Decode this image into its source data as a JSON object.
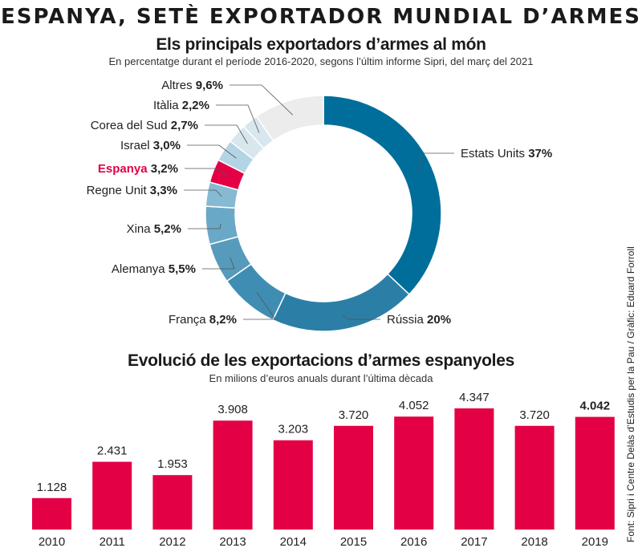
{
  "header": {
    "title": "ESPANYA, SETÈ EXPORTADOR MUNDIAL D’ARMES"
  },
  "source": "Font: Sipri i Centre Delàs d’Estudis per la Pau / Gràfic: Eduard Forroll",
  "colors": {
    "accent": "#e30045",
    "blues": [
      "#006e9b",
      "#2b7fa7",
      "#3f8db3",
      "#569bbc",
      "#6aa8c7",
      "#86b9d2",
      "#9ec8dd",
      "#b3d4e4",
      "#d8e6ee"
    ],
    "other": "#ececec"
  },
  "chart_data": [
    {
      "type": "pie",
      "donut": true,
      "title": "Els principals exportadors d’armes al món",
      "subtitle": "En percentatge durant el període 2016-2020, segons l’últim informe Sipri, del març del 2021",
      "unit": "%",
      "slices": [
        {
          "name": "Estats Units",
          "value": 37,
          "label": "37%"
        },
        {
          "name": "Rússia",
          "value": 20,
          "label": "20%"
        },
        {
          "name": "França",
          "value": 8.2,
          "label": "8,2%"
        },
        {
          "name": "Alemanya",
          "value": 5.5,
          "label": "5,5%"
        },
        {
          "name": "Xina",
          "value": 5.2,
          "label": "5,2%"
        },
        {
          "name": "Regne Unit",
          "value": 3.3,
          "label": "3,3%"
        },
        {
          "name": "Espanya",
          "value": 3.2,
          "label": "3,2%",
          "highlight": true
        },
        {
          "name": "Israel",
          "value": 3.0,
          "label": "3,0%"
        },
        {
          "name": "Corea del Sud",
          "value": 2.7,
          "label": "2,7%"
        },
        {
          "name": "Itàlia",
          "value": 2.2,
          "label": "2,2%"
        },
        {
          "name": "Altres",
          "value": 9.6,
          "label": "9,6%"
        }
      ]
    },
    {
      "type": "bar",
      "title": "Evolució de les exportacions d’armes espanyoles",
      "subtitle": "En milions d’euros anuals durant l’última dècada",
      "xlabel": "",
      "ylabel": "",
      "categories": [
        "2010",
        "2011",
        "2012",
        "2013",
        "2014",
        "2015",
        "2016",
        "2017",
        "2018",
        "2019"
      ],
      "values": [
        1128,
        2431,
        1953,
        3908,
        3203,
        3720,
        4052,
        4347,
        3720,
        4042
      ],
      "value_labels": [
        "1.128",
        "2.431",
        "1.953",
        "3.908",
        "3.203",
        "3.720",
        "4.052",
        "4.347",
        "3.720",
        "4.042"
      ],
      "highlight_label": "2019",
      "ylim": [
        0,
        4347
      ],
      "grid": false
    }
  ]
}
